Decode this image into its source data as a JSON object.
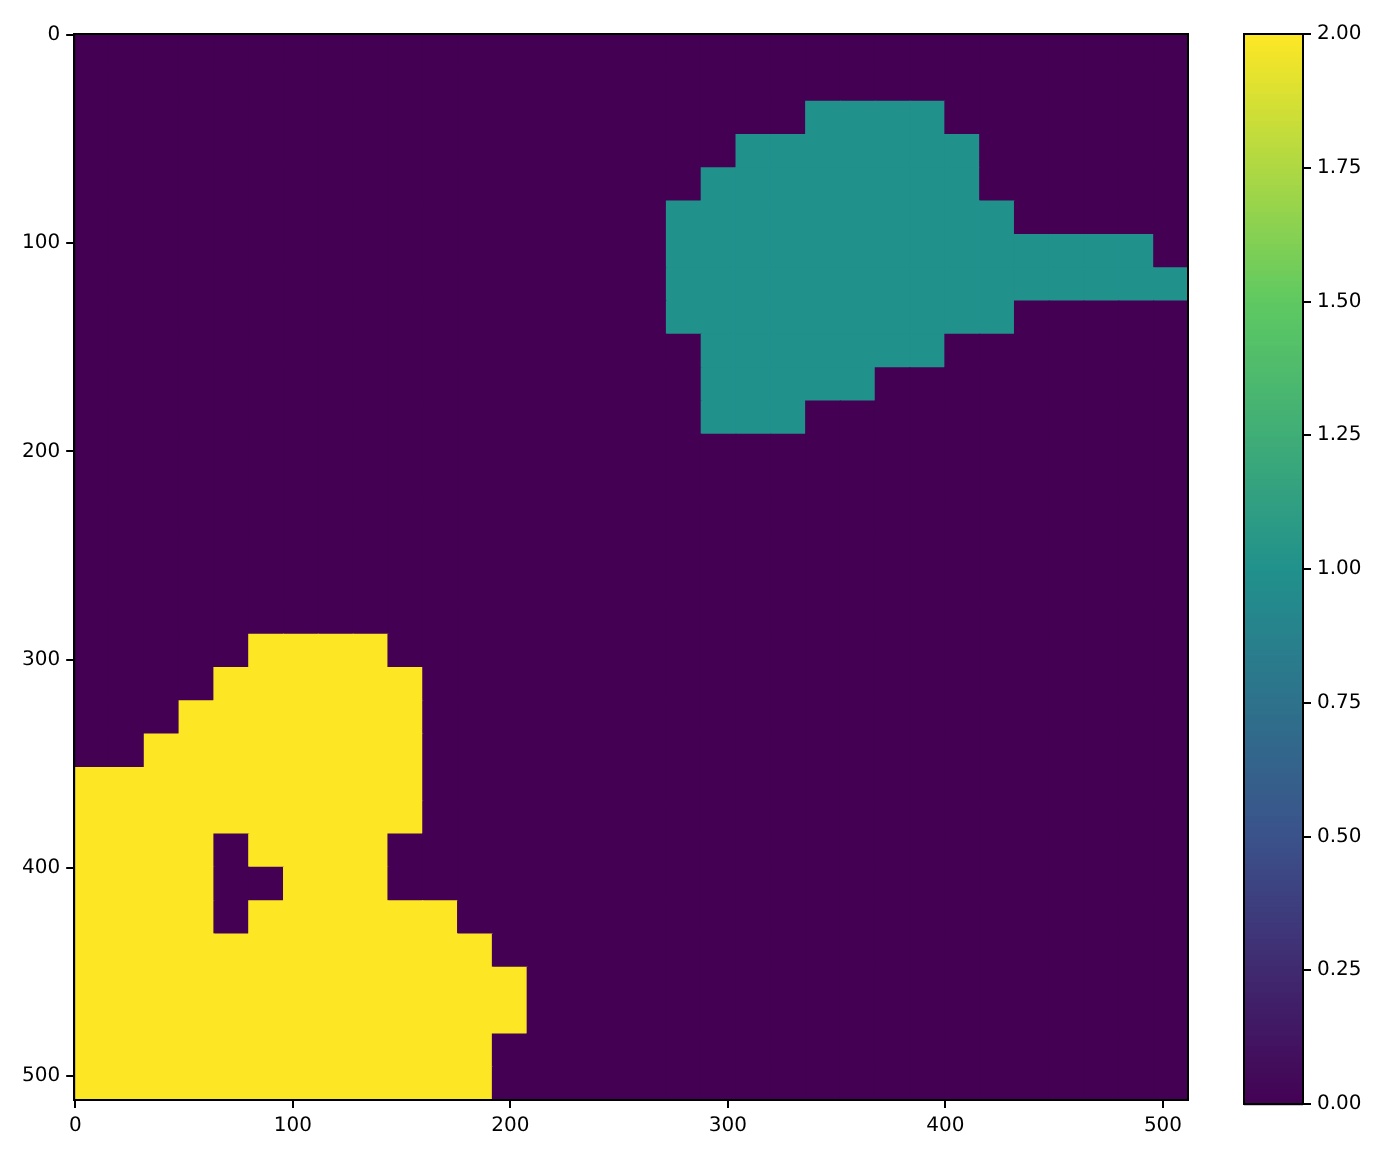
{
  "chart_data": {
    "type": "heatmap",
    "x": [
      7.5,
      23.5,
      39.5,
      55.5,
      71.5,
      87.5,
      103.5,
      119.5,
      135.5,
      151.5,
      167.5,
      183.5,
      199.5,
      215.5,
      231.5,
      247.5,
      263.5,
      279.5,
      295.5,
      311.5,
      327.5,
      343.5,
      359.5,
      375.5,
      391.5,
      407.5,
      423.5,
      439.5,
      455.5,
      471.5,
      487.5,
      503.5
    ],
    "xlim": [
      -0.5,
      511.5
    ],
    "xticks": [
      0,
      100,
      200,
      300,
      400,
      500
    ],
    "ylim": [
      511.5,
      -0.5
    ],
    "yticks": [
      0,
      100,
      200,
      300,
      400,
      500
    ],
    "clim": [
      0,
      2
    ],
    "cticks": [
      {
        "value": 0,
        "label": "0.00"
      },
      {
        "value": 0.25,
        "label": "0.25"
      },
      {
        "value": 0.5,
        "label": "0.50"
      },
      {
        "value": 0.75,
        "label": "0.75"
      },
      {
        "value": 1,
        "label": "1.00"
      },
      {
        "value": 1.25,
        "label": "1.25"
      },
      {
        "value": 1.5,
        "label": "1.50"
      },
      {
        "value": 1.75,
        "label": "1.75"
      },
      {
        "value": 2,
        "label": "2.00"
      }
    ],
    "cells": [
      [
        0,
        0,
        0,
        0,
        0,
        0,
        0,
        0,
        0,
        0,
        0,
        0,
        0,
        0,
        0,
        0,
        0,
        0,
        0,
        0,
        0,
        0,
        0,
        0,
        0,
        0,
        0,
        0,
        0,
        0,
        0,
        0
      ],
      [
        0,
        0,
        0,
        0,
        0,
        0,
        0,
        0,
        0,
        0,
        0,
        0,
        0,
        0,
        0,
        0,
        0,
        0,
        0,
        0,
        0,
        0,
        0,
        0,
        0,
        0,
        0,
        0,
        0,
        0,
        0,
        0
      ],
      [
        0,
        0,
        0,
        0,
        0,
        0,
        0,
        0,
        0,
        0,
        0,
        0,
        0,
        0,
        0,
        0,
        0,
        0,
        0,
        0,
        0,
        1,
        1,
        1,
        1,
        0,
        0,
        0,
        0,
        0,
        0,
        0
      ],
      [
        0,
        0,
        0,
        0,
        0,
        0,
        0,
        0,
        0,
        0,
        0,
        0,
        0,
        0,
        0,
        0,
        0,
        0,
        0,
        1,
        1,
        1,
        1,
        1,
        1,
        1,
        0,
        0,
        0,
        0,
        0,
        0
      ],
      [
        0,
        0,
        0,
        0,
        0,
        0,
        0,
        0,
        0,
        0,
        0,
        0,
        0,
        0,
        0,
        0,
        0,
        0,
        1,
        1,
        1,
        1,
        1,
        1,
        1,
        1,
        0,
        0,
        0,
        0,
        0,
        0
      ],
      [
        0,
        0,
        0,
        0,
        0,
        0,
        0,
        0,
        0,
        0,
        0,
        0,
        0,
        0,
        0,
        0,
        0,
        1,
        1,
        1,
        1,
        1,
        1,
        1,
        1,
        1,
        1,
        0,
        0,
        0,
        0,
        0
      ],
      [
        0,
        0,
        0,
        0,
        0,
        0,
        0,
        0,
        0,
        0,
        0,
        0,
        0,
        0,
        0,
        0,
        0,
        1,
        1,
        1,
        1,
        1,
        1,
        1,
        1,
        1,
        1,
        1,
        1,
        1,
        1,
        0
      ],
      [
        0,
        0,
        0,
        0,
        0,
        0,
        0,
        0,
        0,
        0,
        0,
        0,
        0,
        0,
        0,
        0,
        0,
        1,
        1,
        1,
        1,
        1,
        1,
        1,
        1,
        1,
        1,
        1,
        1,
        1,
        1,
        1
      ],
      [
        0,
        0,
        0,
        0,
        0,
        0,
        0,
        0,
        0,
        0,
        0,
        0,
        0,
        0,
        0,
        0,
        0,
        1,
        1,
        1,
        1,
        1,
        1,
        1,
        1,
        1,
        1,
        0,
        0,
        0,
        0,
        0
      ],
      [
        0,
        0,
        0,
        0,
        0,
        0,
        0,
        0,
        0,
        0,
        0,
        0,
        0,
        0,
        0,
        0,
        0,
        0,
        1,
        1,
        1,
        1,
        1,
        1,
        1,
        0,
        0,
        0,
        0,
        0,
        0,
        0
      ],
      [
        0,
        0,
        0,
        0,
        0,
        0,
        0,
        0,
        0,
        0,
        0,
        0,
        0,
        0,
        0,
        0,
        0,
        0,
        1,
        1,
        1,
        1,
        1,
        0,
        0,
        0,
        0,
        0,
        0,
        0,
        0,
        0
      ],
      [
        0,
        0,
        0,
        0,
        0,
        0,
        0,
        0,
        0,
        0,
        0,
        0,
        0,
        0,
        0,
        0,
        0,
        0,
        1,
        1,
        1,
        0,
        0,
        0,
        0,
        0,
        0,
        0,
        0,
        0,
        0,
        0
      ],
      [
        0,
        0,
        0,
        0,
        0,
        0,
        0,
        0,
        0,
        0,
        0,
        0,
        0,
        0,
        0,
        0,
        0,
        0,
        0,
        0,
        0,
        0,
        0,
        0,
        0,
        0,
        0,
        0,
        0,
        0,
        0,
        0
      ],
      [
        0,
        0,
        0,
        0,
        0,
        0,
        0,
        0,
        0,
        0,
        0,
        0,
        0,
        0,
        0,
        0,
        0,
        0,
        0,
        0,
        0,
        0,
        0,
        0,
        0,
        0,
        0,
        0,
        0,
        0,
        0,
        0
      ],
      [
        0,
        0,
        0,
        0,
        0,
        0,
        0,
        0,
        0,
        0,
        0,
        0,
        0,
        0,
        0,
        0,
        0,
        0,
        0,
        0,
        0,
        0,
        0,
        0,
        0,
        0,
        0,
        0,
        0,
        0,
        0,
        0
      ],
      [
        0,
        0,
        0,
        0,
        0,
        0,
        0,
        0,
        0,
        0,
        0,
        0,
        0,
        0,
        0,
        0,
        0,
        0,
        0,
        0,
        0,
        0,
        0,
        0,
        0,
        0,
        0,
        0,
        0,
        0,
        0,
        0
      ],
      [
        0,
        0,
        0,
        0,
        0,
        0,
        0,
        0,
        0,
        0,
        0,
        0,
        0,
        0,
        0,
        0,
        0,
        0,
        0,
        0,
        0,
        0,
        0,
        0,
        0,
        0,
        0,
        0,
        0,
        0,
        0,
        0
      ],
      [
        0,
        0,
        0,
        0,
        0,
        0,
        0,
        0,
        0,
        0,
        0,
        0,
        0,
        0,
        0,
        0,
        0,
        0,
        0,
        0,
        0,
        0,
        0,
        0,
        0,
        0,
        0,
        0,
        0,
        0,
        0,
        0
      ],
      [
        0,
        0,
        0,
        0,
        0,
        2,
        2,
        2,
        2,
        0,
        0,
        0,
        0,
        0,
        0,
        0,
        0,
        0,
        0,
        0,
        0,
        0,
        0,
        0,
        0,
        0,
        0,
        0,
        0,
        0,
        0,
        0
      ],
      [
        0,
        0,
        0,
        0,
        2,
        2,
        2,
        2,
        2,
        2,
        0,
        0,
        0,
        0,
        0,
        0,
        0,
        0,
        0,
        0,
        0,
        0,
        0,
        0,
        0,
        0,
        0,
        0,
        0,
        0,
        0,
        0
      ],
      [
        0,
        0,
        0,
        2,
        2,
        2,
        2,
        2,
        2,
        2,
        0,
        0,
        0,
        0,
        0,
        0,
        0,
        0,
        0,
        0,
        0,
        0,
        0,
        0,
        0,
        0,
        0,
        0,
        0,
        0,
        0,
        0
      ],
      [
        0,
        0,
        2,
        2,
        2,
        2,
        2,
        2,
        2,
        2,
        0,
        0,
        0,
        0,
        0,
        0,
        0,
        0,
        0,
        0,
        0,
        0,
        0,
        0,
        0,
        0,
        0,
        0,
        0,
        0,
        0,
        0
      ],
      [
        2,
        2,
        2,
        2,
        2,
        2,
        2,
        2,
        2,
        2,
        0,
        0,
        0,
        0,
        0,
        0,
        0,
        0,
        0,
        0,
        0,
        0,
        0,
        0,
        0,
        0,
        0,
        0,
        0,
        0,
        0,
        0
      ],
      [
        2,
        2,
        2,
        2,
        2,
        2,
        2,
        2,
        2,
        2,
        0,
        0,
        0,
        0,
        0,
        0,
        0,
        0,
        0,
        0,
        0,
        0,
        0,
        0,
        0,
        0,
        0,
        0,
        0,
        0,
        0,
        0
      ],
      [
        2,
        2,
        2,
        2,
        0,
        2,
        2,
        2,
        2,
        0,
        0,
        0,
        0,
        0,
        0,
        0,
        0,
        0,
        0,
        0,
        0,
        0,
        0,
        0,
        0,
        0,
        0,
        0,
        0,
        0,
        0,
        0
      ],
      [
        2,
        2,
        2,
        2,
        0,
        0,
        2,
        2,
        2,
        0,
        0,
        0,
        0,
        0,
        0,
        0,
        0,
        0,
        0,
        0,
        0,
        0,
        0,
        0,
        0,
        0,
        0,
        0,
        0,
        0,
        0,
        0
      ],
      [
        2,
        2,
        2,
        2,
        0,
        2,
        2,
        2,
        2,
        2,
        2,
        0,
        0,
        0,
        0,
        0,
        0,
        0,
        0,
        0,
        0,
        0,
        0,
        0,
        0,
        0,
        0,
        0,
        0,
        0,
        0,
        0
      ],
      [
        2,
        2,
        2,
        2,
        2,
        2,
        2,
        2,
        2,
        2,
        2,
        2,
        0,
        0,
        0,
        0,
        0,
        0,
        0,
        0,
        0,
        0,
        0,
        0,
        0,
        0,
        0,
        0,
        0,
        0,
        0,
        0
      ],
      [
        2,
        2,
        2,
        2,
        2,
        2,
        2,
        2,
        2,
        2,
        2,
        2,
        2,
        0,
        0,
        0,
        0,
        0,
        0,
        0,
        0,
        0,
        0,
        0,
        0,
        0,
        0,
        0,
        0,
        0,
        0,
        0
      ],
      [
        2,
        2,
        2,
        2,
        2,
        2,
        2,
        2,
        2,
        2,
        2,
        2,
        2,
        0,
        0,
        0,
        0,
        0,
        0,
        0,
        0,
        0,
        0,
        0,
        0,
        0,
        0,
        0,
        0,
        0,
        0,
        0
      ],
      [
        2,
        2,
        2,
        2,
        2,
        2,
        2,
        2,
        2,
        2,
        2,
        2,
        0,
        0,
        0,
        0,
        0,
        0,
        0,
        0,
        0,
        0,
        0,
        0,
        0,
        0,
        0,
        0,
        0,
        0,
        0,
        0
      ],
      [
        2,
        2,
        2,
        2,
        2,
        2,
        2,
        2,
        2,
        2,
        2,
        2,
        0,
        0,
        0,
        0,
        0,
        0,
        0,
        0,
        0,
        0,
        0,
        0,
        0,
        0,
        0,
        0,
        0,
        0,
        0,
        0
      ]
    ]
  }
}
